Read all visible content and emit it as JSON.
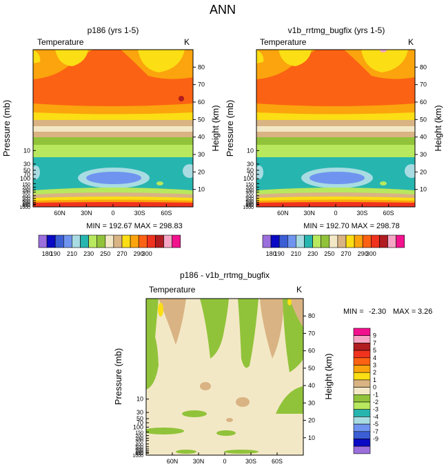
{
  "main_title": "ANN",
  "colors": {
    "abs_levels": [
      "#9b6fdc",
      "#0a0ac4",
      "#3b5ed4",
      "#6f94f0",
      "#a8dce2",
      "#27b5b0",
      "#b8e85e",
      "#91c33a",
      "#f3e8c6",
      "#d9b383",
      "#fbde14",
      "#fba40d",
      "#fb6213",
      "#f0331e",
      "#b01c20",
      "#f6a6c4",
      "#f2128e"
    ],
    "diff_levels": [
      "#9b6fdc",
      "#0a0ac4",
      "#3b5ed4",
      "#6f94f0",
      "#a8dce2",
      "#27b5b0",
      "#b8e85e",
      "#91c33a",
      "#f3e8c6",
      "#d9b383",
      "#fbde14",
      "#fba40d",
      "#fb6213",
      "#f0331e",
      "#b01c20",
      "#f6a6c4",
      "#f2128e"
    ]
  },
  "panels": [
    {
      "id": "p186",
      "title": "p186 (yrs 1-5)",
      "field_label": "Temperature",
      "units": "K",
      "stats": "MIN = 192.67   MAX = 298.83",
      "ylabel": "Pressure (mb)",
      "y2label": "Height (km)"
    },
    {
      "id": "v1b",
      "title": "v1b_rrtmg_bugfix (yrs 1-5)",
      "field_label": "Temperature",
      "units": "K",
      "stats": "MIN = 192.70   MAX = 298.78",
      "ylabel": "Pressure (mb)",
      "y2label": "Height (km)"
    },
    {
      "id": "diff",
      "title": "p186 - v1b_rrtmg_bugfix",
      "field_label": "Temperature",
      "units": "K",
      "stats_min_label": "MIN =",
      "stats_min_value": "-2.30",
      "stats_max_label": "MAX =",
      "stats_max_value": "3.26",
      "ylabel": "Pressure (mb)",
      "y2label": "Height (km)"
    }
  ],
  "abs_colorbar": {
    "labels": [
      "180",
      "190",
      "210",
      "230",
      "250",
      "270",
      "290",
      "300"
    ]
  },
  "diff_colorbar": {
    "labels": [
      "9",
      "7",
      "5",
      "4",
      "3",
      "2",
      "1",
      "0",
      "-1",
      "-2",
      "-3",
      "-4",
      "-5",
      "-7",
      "-9"
    ]
  },
  "chart_data": [
    {
      "type": "heatmap",
      "title": "p186 (yrs 1-5)",
      "xlabel": "",
      "ylabel": "Pressure (mb)",
      "y2label": "Height (km)",
      "x_ticks": [
        "60N",
        "30N",
        "0",
        "30S",
        "60S"
      ],
      "x_range": [
        90,
        -90
      ],
      "y_pressure_ticks": [
        "10",
        "30",
        "50",
        "70",
        "100",
        "150",
        "200",
        "250",
        "300",
        "400",
        "500",
        "600",
        "700",
        "800",
        "850",
        "1000"
      ],
      "y_height_ticks": [
        "10",
        "20",
        "30",
        "40",
        "50",
        "60",
        "70",
        "80"
      ],
      "height_range_km": [
        0,
        90
      ],
      "min": 192.67,
      "max": 298.83,
      "levels": [
        180,
        190,
        200,
        210,
        220,
        230,
        240,
        250,
        260,
        270,
        280,
        290,
        300
      ]
    },
    {
      "type": "heatmap",
      "title": "v1b_rrtmg_bugfix (yrs 1-5)",
      "xlabel": "",
      "ylabel": "Pressure (mb)",
      "y2label": "Height (km)",
      "x_ticks": [
        "60N",
        "30N",
        "0",
        "30S",
        "60S"
      ],
      "x_range": [
        90,
        -90
      ],
      "y_pressure_ticks": [
        "10",
        "30",
        "50",
        "70",
        "100",
        "150",
        "200",
        "250",
        "300",
        "400",
        "500",
        "600",
        "700",
        "800",
        "850",
        "1000"
      ],
      "y_height_ticks": [
        "10",
        "20",
        "30",
        "40",
        "50",
        "60",
        "70",
        "80"
      ],
      "height_range_km": [
        0,
        90
      ],
      "min": 192.7,
      "max": 298.78,
      "levels": [
        180,
        190,
        200,
        210,
        220,
        230,
        240,
        250,
        260,
        270,
        280,
        290,
        300
      ]
    },
    {
      "type": "heatmap",
      "title": "p186 - v1b_rrtmg_bugfix",
      "xlabel": "",
      "ylabel": "Pressure (mb)",
      "y2label": "Height (km)",
      "x_ticks": [
        "60N",
        "30N",
        "0",
        "30S",
        "60S"
      ],
      "x_range": [
        90,
        -90
      ],
      "y_pressure_ticks": [
        "10",
        "30",
        "50",
        "70",
        "100",
        "150",
        "200",
        "250",
        "300",
        "400",
        "500",
        "600",
        "700",
        "800",
        "850",
        "1000"
      ],
      "y_height_ticks": [
        "10",
        "20",
        "30",
        "40",
        "50",
        "60",
        "70",
        "80"
      ],
      "height_range_km": [
        0,
        90
      ],
      "min": -2.3,
      "max": 3.26,
      "levels": [
        -9,
        -7,
        -5,
        -4,
        -3,
        -2,
        -1,
        0,
        1,
        2,
        3,
        4,
        5,
        7,
        9
      ]
    }
  ]
}
